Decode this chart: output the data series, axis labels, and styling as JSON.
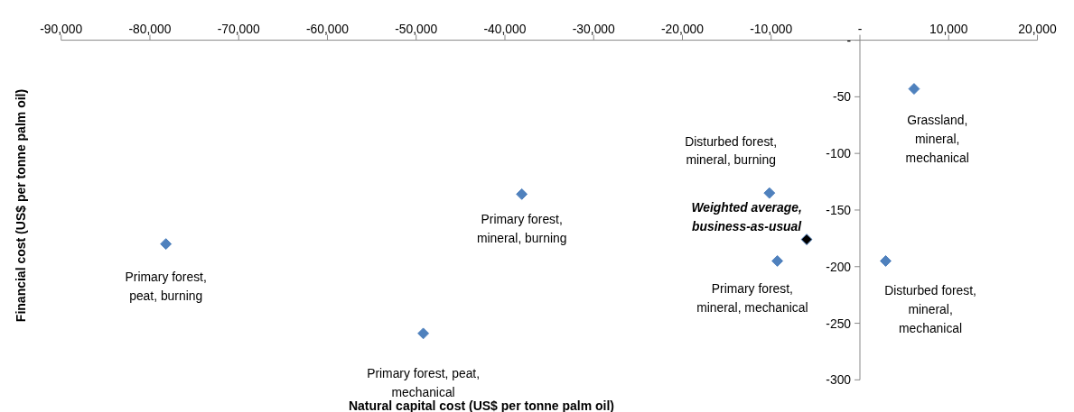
{
  "chart_data": {
    "type": "scatter",
    "xlabel": "Natural capital cost (US$ per tonne palm oil)",
    "ylabel": "Financial cost (US$ per tonne palm oil)",
    "series": [
      {
        "color": "#4f81bd",
        "x": [
          -78200,
          -49200,
          -38100,
          -10200,
          -9300,
          2900,
          6100
        ],
        "values": [
          -180,
          -259,
          -136,
          -135,
          -195,
          -195,
          -43
        ]
      },
      {
        "color": "#000000",
        "x": [
          -6000
        ],
        "values": [
          -176
        ]
      }
    ],
    "xlim": [
      -90000,
      20000
    ],
    "xticks": [
      {
        "value": -90000,
        "label": "-90,000"
      },
      {
        "value": -80000,
        "label": "-80,000"
      },
      {
        "value": -70000,
        "label": "-70,000"
      },
      {
        "value": -60000,
        "label": "-60,000"
      },
      {
        "value": -50000,
        "label": "-50,000"
      },
      {
        "value": -40000,
        "label": "-40,000"
      },
      {
        "value": -30000,
        "label": "-30,000"
      },
      {
        "value": -20000,
        "label": "-20,000"
      },
      {
        "value": -10000,
        "label": "-10,000"
      },
      {
        "value": 0,
        "label": "-"
      },
      {
        "value": 10000,
        "label": "10,000"
      },
      {
        "value": 20000,
        "label": "20,000"
      }
    ],
    "ylim": [
      -300,
      0
    ],
    "yticks": [
      {
        "value": 0,
        "label": "-"
      },
      -50,
      -100,
      -150,
      -200,
      -250,
      -300
    ],
    "grid": false,
    "legend": false,
    "marker": "diamond",
    "annotations": [
      {
        "text": "Primary forest, peat, burning",
        "x": -78200,
        "y": -180
      },
      {
        "text": "Primary forest, peat, mechanical",
        "x": -49200,
        "y": -259
      },
      {
        "text": "Primary forest, mineral, burning",
        "x": -38100,
        "y": -136
      },
      {
        "text": "Disturbed forest, mineral, burning",
        "x": -10200,
        "y": -135
      },
      {
        "text": "Weighted average, business-as-usual",
        "x": -6000,
        "y": -176
      },
      {
        "text": "Primary forest, mineral, mechanical",
        "x": -9300,
        "y": -195
      },
      {
        "text": "Disturbed forest, mineral, mechanical",
        "x": 2900,
        "y": -195
      },
      {
        "text": "Grassland, mineral, mechanical",
        "x": 6100,
        "y": -43
      }
    ]
  }
}
